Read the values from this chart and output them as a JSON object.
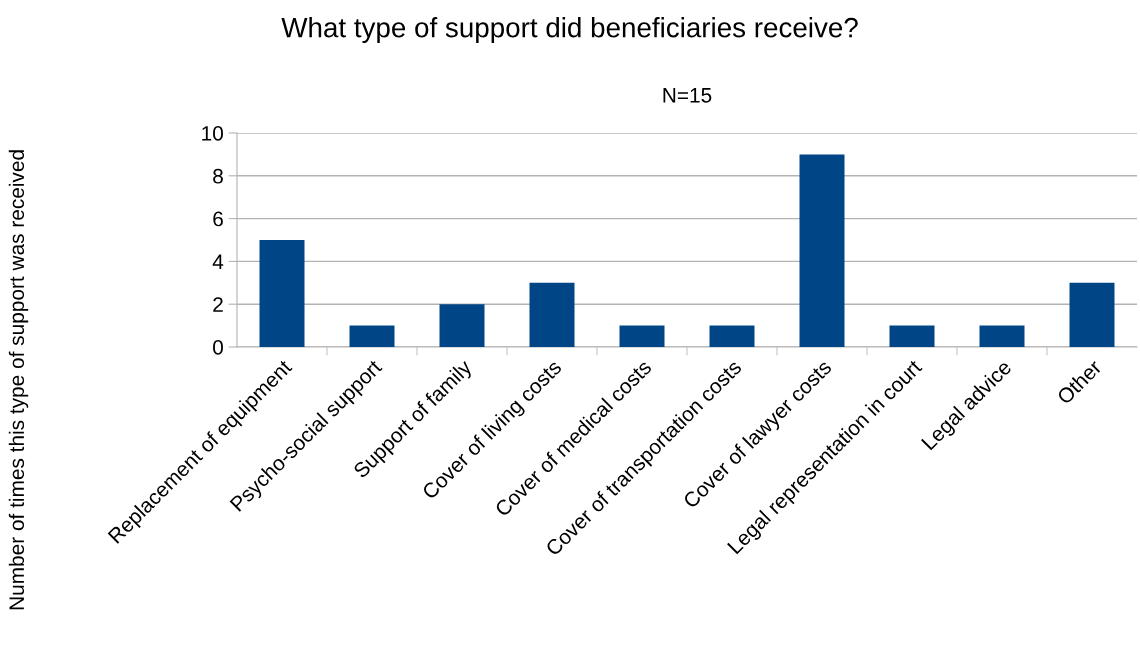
{
  "chart_data": {
    "type": "bar",
    "title": "What type of support did beneficiaries receive?",
    "subtitle": "N=15",
    "ylabel": "Number of times this type of support was received",
    "categories": [
      "Replacement of equipment",
      "Psycho-social support",
      "Support of family",
      "Cover of living costs",
      "Cover of medical costs",
      "Cover of transportation costs",
      "Cover of lawyer costs",
      "Legal representation in court",
      "Legal advice",
      "Other"
    ],
    "values": [
      5,
      1,
      2,
      3,
      1,
      1,
      9,
      1,
      1,
      3
    ],
    "color": "#004586",
    "ylim": [
      0,
      10
    ],
    "yticks": [
      0,
      2,
      4,
      6,
      8,
      10
    ],
    "grid": "y",
    "legend": false
  }
}
